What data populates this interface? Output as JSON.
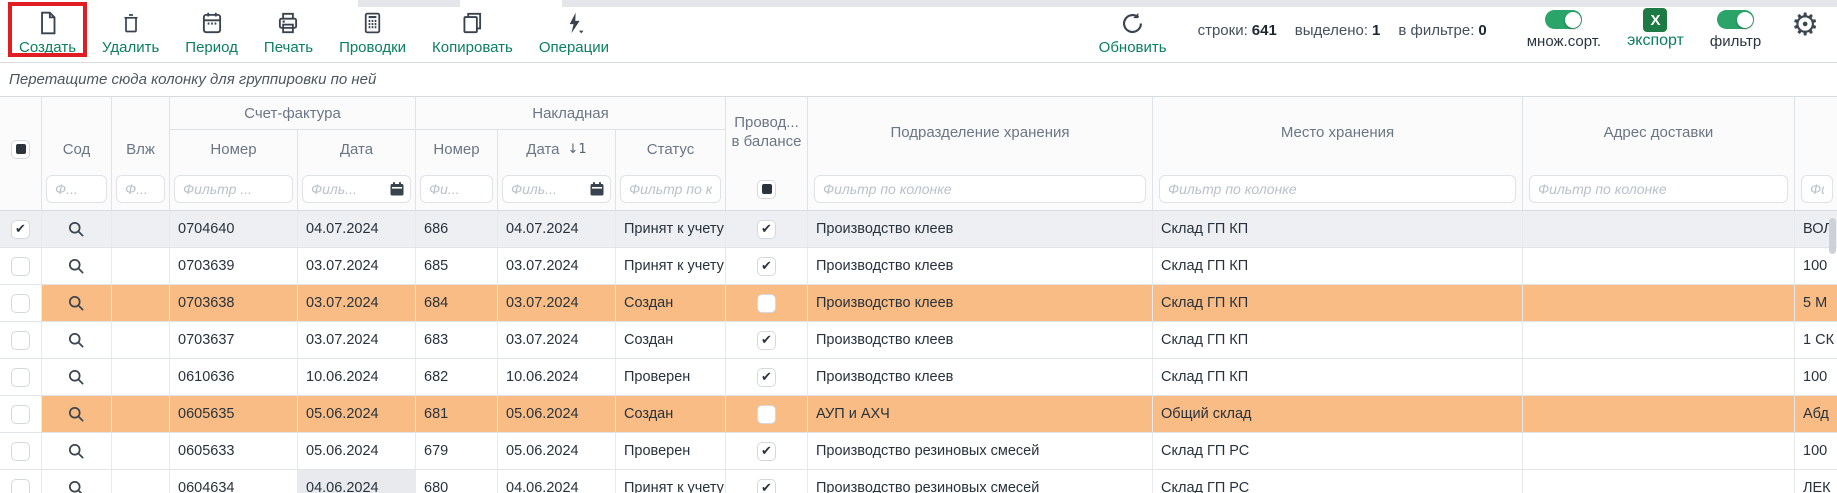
{
  "toolbar": {
    "buttons": [
      {
        "label": "Создать",
        "icon": "new-document-icon",
        "highlighted": true
      },
      {
        "label": "Удалить",
        "icon": "trash-icon"
      },
      {
        "label": "Период",
        "icon": "calendar-icon"
      },
      {
        "label": "Печать",
        "icon": "printer-icon"
      },
      {
        "label": "Проводки",
        "icon": "calculator-icon"
      },
      {
        "label": "Копировать",
        "icon": "copy-icon"
      },
      {
        "label": "Операции",
        "icon": "lightning-icon",
        "has_dropdown": true
      }
    ],
    "refresh": {
      "label": "Обновить"
    },
    "stats": {
      "rows_label": "строки:",
      "rows_value": "641",
      "selected_label": "выделено:",
      "selected_value": "1",
      "filtered_label": "в фильтре:",
      "filtered_value": "0"
    },
    "multisort_toggle": {
      "label": "множ.сорт.",
      "state": "on"
    },
    "export": {
      "label": "экспорт",
      "icon_letter": "X"
    },
    "filter_toggle": {
      "label": "фильтр",
      "state": "on"
    }
  },
  "group_bar": {
    "hint": "Перетащите сюда колонку для группировки по ней"
  },
  "table": {
    "column_groups": [
      {
        "label": "Счет-фактура"
      },
      {
        "label": "Накладная"
      }
    ],
    "columns": {
      "sod": "Сод",
      "vlj": "Влж",
      "sf_num": "Номер",
      "sf_date": "Дата",
      "n_num": "Номер",
      "n_date": "Дата",
      "status": "Статус",
      "balance_line1": "Провод...",
      "balance_line2": "в балансе",
      "dept": "Подразделение хранения",
      "place": "Место хранения",
      "addr": "Адрес доставки"
    },
    "sort_indicator": "↓1",
    "filters": {
      "sod": "Ф...",
      "vlj": "Ф...",
      "sf_num": "Фильтр ...",
      "sf_date": "Филь...",
      "n_num": "Фи...",
      "n_date": "Филь...",
      "status": "Фильтр по к...",
      "dept": "Фильтр по колонке",
      "place": "Фильтр по колонке",
      "addr": "Фильтр по колонке",
      "extra": "Фи..."
    },
    "rows": [
      {
        "selected": true,
        "highlighted": false,
        "sf_num": "0704640",
        "sf_date": "04.07.2024",
        "n_num": "686",
        "n_date": "04.07.2024",
        "status": "Принят к учету",
        "balance_checked": true,
        "dept": "Производство клеев",
        "place": "Склад ГП КП",
        "addr": "",
        "extra": "ВОЛ"
      },
      {
        "selected": false,
        "highlighted": false,
        "sf_num": "0703639",
        "sf_date": "03.07.2024",
        "n_num": "685",
        "n_date": "03.07.2024",
        "status": "Принят к учету",
        "balance_checked": true,
        "dept": "Производство клеев",
        "place": "Склад ГП КП",
        "addr": "",
        "extra": "100"
      },
      {
        "selected": false,
        "highlighted": true,
        "sf_num": "0703638",
        "sf_date": "03.07.2024",
        "n_num": "684",
        "n_date": "03.07.2024",
        "status": "Создан",
        "balance_checked": false,
        "dept": "Производство клеев",
        "place": "Склад ГП КП",
        "addr": "",
        "extra": "5 М"
      },
      {
        "selected": false,
        "highlighted": false,
        "sf_num": "0703637",
        "sf_date": "03.07.2024",
        "n_num": "683",
        "n_date": "03.07.2024",
        "status": "Создан",
        "balance_checked": true,
        "dept": "Производство клеев",
        "place": "Склад ГП КП",
        "addr": "",
        "extra": "1 СК"
      },
      {
        "selected": false,
        "highlighted": false,
        "sf_num": "0610636",
        "sf_date": "10.06.2024",
        "n_num": "682",
        "n_date": "10.06.2024",
        "status": "Проверен",
        "balance_checked": true,
        "dept": "Производство клеев",
        "place": "Склад ГП КП",
        "addr": "",
        "extra": "100"
      },
      {
        "selected": false,
        "highlighted": true,
        "sf_num": "0605635",
        "sf_date": "05.06.2024",
        "n_num": "681",
        "n_date": "05.06.2024",
        "status": "Создан",
        "balance_checked": false,
        "dept": "АУП и АХЧ",
        "place": "Общий склад",
        "addr": "",
        "extra": "Абд"
      },
      {
        "selected": false,
        "highlighted": false,
        "sf_num": "0605633",
        "sf_date": "05.06.2024",
        "n_num": "679",
        "n_date": "05.06.2024",
        "status": "Проверен",
        "balance_checked": true,
        "dept": "Производство резиновых смесей",
        "place": "Склад ГП РС",
        "addr": "",
        "extra": "100"
      },
      {
        "selected": false,
        "highlighted": false,
        "sf_num": "0604634",
        "sf_date": "04.06.2024",
        "sf_date_focused": true,
        "n_num": "680",
        "n_date": "04.06.2024",
        "status": "Принят к учету",
        "balance_checked": true,
        "dept": "Производство резиновых смесей",
        "place": "Склад ГП РС",
        "addr": "",
        "extra": "ЛЕК"
      }
    ]
  },
  "colors": {
    "accent_green": "#0a8060",
    "toggle_green": "#2aa469",
    "excel_green": "#1e7a44",
    "highlight_red": "#e01d23",
    "row_highlight_orange": "#f8bc84",
    "row_selected_gray": "#edeff2"
  }
}
